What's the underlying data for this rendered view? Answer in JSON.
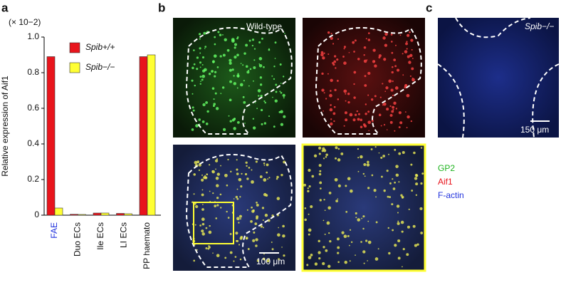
{
  "chart_data": {
    "type": "bar",
    "axis_multiplier": "(× 10−2)",
    "ylabel": "Relative expression of Aif1",
    "categories": [
      "FAE",
      "Duo ECs",
      "Ile ECs",
      "LI ECs",
      "PP haemato"
    ],
    "series": [
      {
        "name": "Spib+/+",
        "color": "#e8141c",
        "values": [
          0.89,
          0.005,
          0.012,
          0.01,
          0.89
        ]
      },
      {
        "name": "Spib−/−",
        "color": "#ffff33",
        "values": [
          0.04,
          0.004,
          0.012,
          0.008,
          0.9
        ]
      }
    ],
    "ylim": [
      0,
      1
    ],
    "yticks": [
      0,
      0.2,
      0.4,
      0.6,
      0.8,
      {
        "value": 1,
        "label": "1.0"
      }
    ],
    "grid": false
  },
  "panels": {
    "a": "a",
    "b": "b",
    "c": "c",
    "wild_type": "Wild-type",
    "knockout": "Spib−/−",
    "scale_b": "100 μm",
    "scale_c": "150 μm",
    "stain_legend": [
      "GP2",
      "Aif1",
      "F-actin"
    ]
  }
}
